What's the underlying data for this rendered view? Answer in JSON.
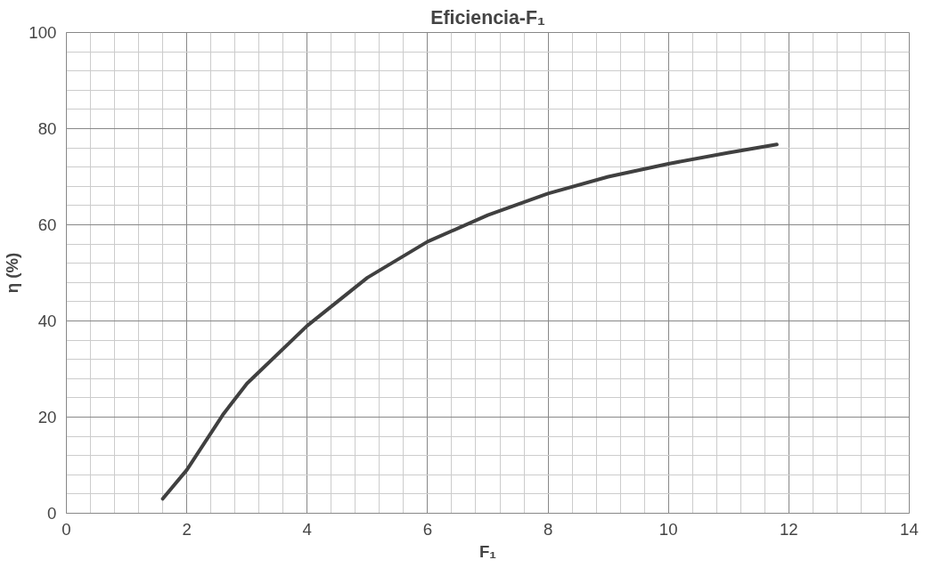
{
  "chart_data": {
    "type": "line",
    "title": "Eficiencia-F₁",
    "xlabel": "F₁",
    "ylabel": "η (%)",
    "x": [
      1.6,
      2,
      2.6,
      3,
      4,
      5,
      6,
      7,
      8,
      9,
      10,
      11,
      11.8
    ],
    "series": [
      {
        "color": "#404040",
        "values": [
          3,
          9,
          20.5,
          27,
          39,
          49,
          56.5,
          62,
          66.5,
          70,
          72.7,
          75,
          76.7
        ]
      }
    ],
    "xlim": [
      0,
      14
    ],
    "xticks": [
      0,
      2,
      4,
      6,
      8,
      10,
      12,
      14
    ],
    "ylim": [
      0,
      100
    ],
    "yticks": [
      0,
      20,
      40,
      60,
      80,
      100
    ],
    "grid": true,
    "marker": "none",
    "line_style": "solid"
  }
}
